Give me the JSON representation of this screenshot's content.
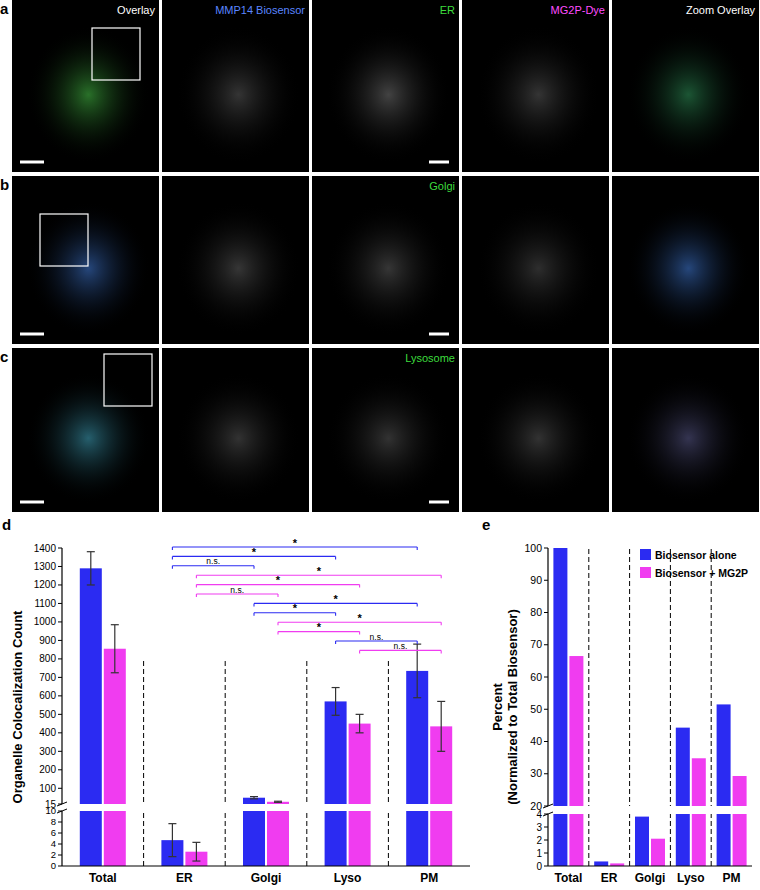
{
  "images": {
    "rows": [
      {
        "label": "a",
        "titles": [
          "Overlay",
          "MMP14 Biosensor",
          "ER",
          "MG2P-Dye",
          "Zoom Overlay"
        ]
      },
      {
        "label": "b",
        "titles": [
          null,
          null,
          "Golgi",
          null,
          null
        ]
      },
      {
        "label": "c",
        "titles": [
          null,
          null,
          "Lysosome",
          null,
          null
        ]
      }
    ]
  },
  "chart_data": [
    {
      "type": "bar",
      "panel_label": "d",
      "y_label": [
        "Organelle Colocalization Count"
      ],
      "categories": [
        "Total",
        "ER",
        "Golgi",
        "Lyso",
        "PM"
      ],
      "series": [
        {
          "color": "#2b2bf2",
          "values": [
            1290,
            4.7,
            49,
            570,
            735
          ],
          "errors": [
            90,
            3.0,
            6,
            75,
            145
          ]
        },
        {
          "color": "#f03cf0",
          "values": [
            855,
            2.6,
            27,
            450,
            435
          ],
          "errors": [
            130,
            1.7,
            3,
            50,
            135
          ]
        }
      ],
      "ylim": [
        0,
        1400
      ],
      "y_break": [
        10,
        15
      ],
      "yticks": [
        0,
        2,
        4,
        6,
        8,
        10,
        15,
        100,
        200,
        300,
        400,
        500,
        600,
        700,
        800,
        900,
        1000,
        1100,
        1200,
        1300,
        1400
      ],
      "comparisons": [
        {
          "series": 0,
          "from": 1,
          "to": 4,
          "label": "*"
        },
        {
          "series": 0,
          "from": 1,
          "to": 3,
          "label": "*"
        },
        {
          "series": 0,
          "from": 1,
          "to": 2,
          "label": "n.s."
        },
        {
          "series": 1,
          "from": 1,
          "to": 4,
          "label": "*"
        },
        {
          "series": 1,
          "from": 1,
          "to": 3,
          "label": "*"
        },
        {
          "series": 1,
          "from": 1,
          "to": 2,
          "label": "n.s."
        },
        {
          "series": 0,
          "from": 2,
          "to": 4,
          "label": "*"
        },
        {
          "series": 0,
          "from": 2,
          "to": 3,
          "label": "*"
        },
        {
          "series": 1,
          "from": 2,
          "to": 4,
          "label": "*"
        },
        {
          "series": 1,
          "from": 2,
          "to": 3,
          "label": "*"
        },
        {
          "series": 0,
          "from": 3,
          "to": 4,
          "label": "n.s."
        },
        {
          "series": 1,
          "from": 3,
          "to": 4,
          "label": "n.s."
        }
      ]
    },
    {
      "type": "bar",
      "panel_label": "e",
      "y_label": [
        "Percent",
        "(Normalized to Total Biosensor)"
      ],
      "categories": [
        "Total",
        "ER",
        "Golgi",
        "Lyso",
        "PM"
      ],
      "series": [
        {
          "name": "Biosensor alone",
          "color": "#2b2bf2",
          "values": [
            100,
            0.35,
            3.8,
            44.3,
            51.5
          ]
        },
        {
          "name": "Biosensor + MG2P",
          "color": "#f03cf0",
          "values": [
            66.5,
            0.2,
            2.1,
            34.8,
            29.3
          ]
        }
      ],
      "ylim": [
        0,
        100
      ],
      "y_break": [
        4,
        20
      ],
      "yticks": [
        0,
        1,
        2,
        3,
        4,
        20,
        30,
        40,
        50,
        60,
        70,
        80,
        90,
        100
      ],
      "legend": "upper right"
    }
  ]
}
